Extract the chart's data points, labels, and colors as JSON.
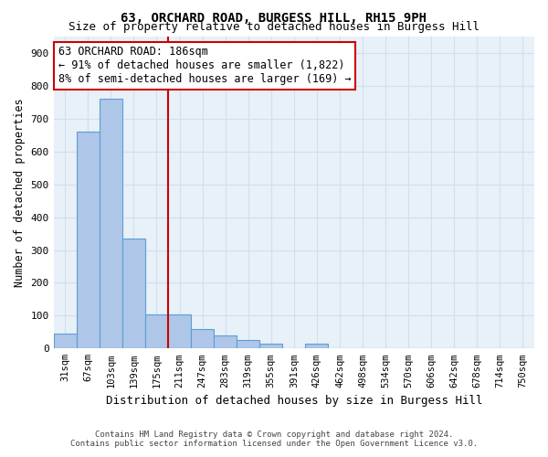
{
  "title1": "63, ORCHARD ROAD, BURGESS HILL, RH15 9PH",
  "title2": "Size of property relative to detached houses in Burgess Hill",
  "xlabel": "Distribution of detached houses by size in Burgess Hill",
  "ylabel": "Number of detached properties",
  "footnote1": "Contains HM Land Registry data © Crown copyright and database right 2024.",
  "footnote2": "Contains public sector information licensed under the Open Government Licence v3.0.",
  "bin_labels": [
    "31sqm",
    "67sqm",
    "103sqm",
    "139sqm",
    "175sqm",
    "211sqm",
    "247sqm",
    "283sqm",
    "319sqm",
    "355sqm",
    "391sqm",
    "426sqm",
    "462sqm",
    "498sqm",
    "534sqm",
    "570sqm",
    "606sqm",
    "642sqm",
    "678sqm",
    "714sqm",
    "750sqm"
  ],
  "bar_heights": [
    45,
    660,
    760,
    335,
    105,
    105,
    60,
    40,
    25,
    15,
    0,
    15,
    0,
    0,
    0,
    0,
    0,
    0,
    0,
    0,
    0
  ],
  "bar_color": "#aec6e8",
  "bar_edge_color": "#5a9fd4",
  "grid_color": "#d0dff0",
  "background_color": "#e8f0f8",
  "vline_x": 4.5,
  "vline_color": "#cc0000",
  "annotation_text1": "63 ORCHARD ROAD: 186sqm",
  "annotation_text2": "← 91% of detached houses are smaller (1,822)",
  "annotation_text3": "8% of semi-detached houses are larger (169) →",
  "annotation_fontsize": 8.5,
  "ylim": [
    0,
    950
  ],
  "yticks": [
    0,
    100,
    200,
    300,
    400,
    500,
    600,
    700,
    800,
    900
  ]
}
